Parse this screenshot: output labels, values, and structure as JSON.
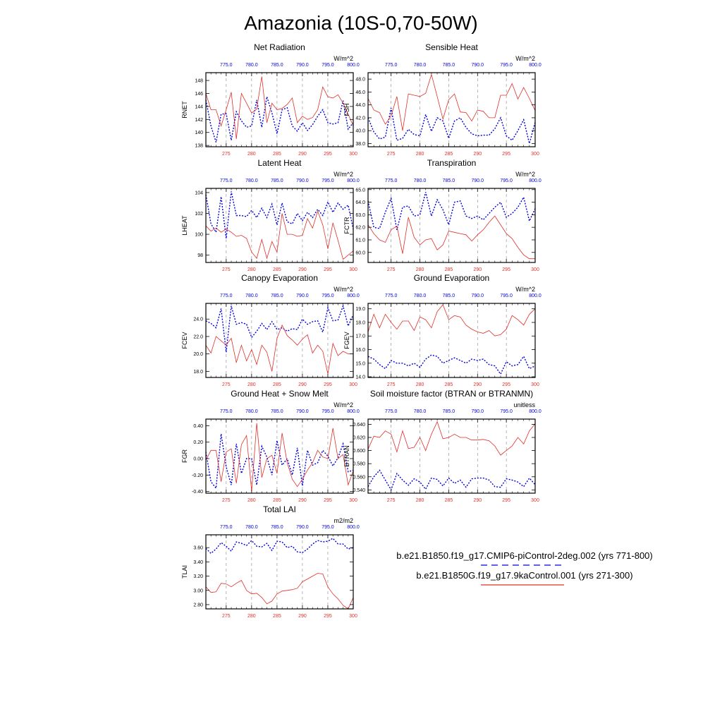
{
  "title": "Amazonia (10S-0,70-50W)",
  "colors": {
    "series1": "#0000dd",
    "series2": "#e0302a",
    "axis": "#000000",
    "grid": "#888888"
  },
  "top_axis": {
    "ticks": [
      "775.0",
      "780.0",
      "785.0",
      "790.0",
      "795.0",
      "800.0"
    ]
  },
  "bottom_axis": {
    "ticks": [
      "275",
      "280",
      "285",
      "290",
      "295",
      "300"
    ]
  },
  "legend": [
    {
      "label": "b.e21.B1850.f19_g17.CMIP6-piControl-2deg.002 (yrs 771-800)",
      "style": "dashed",
      "color": "#0000dd"
    },
    {
      "label": "b.e21.B1850G.f19_g17.9kaControl.001 (yrs 271-300)",
      "style": "solid",
      "color": "#e0302a"
    }
  ],
  "chart_data": [
    {
      "type": "line",
      "title": "Net Radiation",
      "ylabel": "RNET",
      "units": "W/m^2",
      "x": [
        271,
        272,
        273,
        274,
        275,
        276,
        277,
        278,
        279,
        280,
        281,
        282,
        283,
        284,
        285,
        286,
        287,
        288,
        289,
        290,
        291,
        292,
        293,
        294,
        295,
        296,
        297,
        298,
        299,
        300
      ],
      "ylim": [
        137.8,
        149.2
      ],
      "yticks": [
        138,
        140,
        142,
        144,
        146,
        148
      ],
      "ytick_labels": [
        "138",
        "140",
        "142",
        "144",
        "146",
        "148"
      ],
      "series": [
        {
          "values": [
            145.0,
            141.0,
            138.5,
            142.8,
            142.9,
            138.8,
            143.2,
            141.8,
            140.8,
            141.0,
            145.0,
            140.8,
            145.5,
            143.0,
            139.8,
            143.5,
            143.8,
            141.0,
            140.2,
            141.5,
            140.3,
            141.2,
            142.5,
            143.5,
            141.5,
            141.3,
            141.5,
            144.9,
            140.5,
            141.5
          ]
        },
        {
          "values": [
            146.0,
            143.5,
            143.5,
            141.0,
            143.5,
            146.2,
            139.0,
            146.0,
            144.5,
            143.0,
            143.6,
            148.6,
            141.5,
            144.5,
            143.5,
            143.7,
            144.3,
            145.3,
            141.5,
            142.5,
            142.0,
            142.3,
            143.5,
            147.0,
            145.5,
            145.3,
            145.8,
            144.5,
            142.8,
            141.0
          ]
        }
      ]
    },
    {
      "type": "line",
      "title": "Sensible Heat",
      "ylabel": "FSH",
      "units": "W/m^2",
      "x": [
        271,
        272,
        273,
        274,
        275,
        276,
        277,
        278,
        279,
        280,
        281,
        282,
        283,
        284,
        285,
        286,
        287,
        288,
        289,
        290,
        291,
        292,
        293,
        294,
        295,
        296,
        297,
        298,
        299,
        300
      ],
      "ylim": [
        37.5,
        49.0
      ],
      "yticks": [
        38,
        40,
        42,
        44,
        46,
        48
      ],
      "ytick_labels": [
        "38.0",
        "40.0",
        "42.0",
        "44.0",
        "46.0",
        "48.0"
      ],
      "series": [
        {
          "values": [
            42.0,
            39.8,
            38.7,
            39.0,
            43.5,
            38.5,
            38.8,
            40.2,
            39.4,
            39.2,
            42.5,
            39.9,
            42.0,
            41.5,
            38.8,
            41.5,
            42.0,
            40.5,
            39.5,
            39.2,
            39.3,
            39.3,
            40.3,
            42.0,
            39.2,
            38.5,
            40.0,
            41.7,
            38.0,
            41.3
          ]
        },
        {
          "values": [
            45.0,
            43.2,
            42.8,
            41.0,
            42.3,
            45.3,
            40.0,
            45.7,
            45.5,
            45.3,
            45.8,
            48.7,
            45.3,
            41.8,
            44.8,
            45.7,
            42.9,
            42.8,
            41.5,
            43.2,
            43.0,
            42.0,
            42.0,
            45.5,
            45.5,
            47.3,
            44.9,
            46.7,
            45.0,
            43.1
          ]
        }
      ]
    },
    {
      "type": "line",
      "title": "Latent Heat",
      "ylabel": "LHEAT",
      "units": "W/m^2",
      "x": [
        271,
        272,
        273,
        274,
        275,
        276,
        277,
        278,
        279,
        280,
        281,
        282,
        283,
        284,
        285,
        286,
        287,
        288,
        289,
        290,
        291,
        292,
        293,
        294,
        295,
        296,
        297,
        298,
        299,
        300
      ],
      "ylim": [
        97.3,
        104.4
      ],
      "yticks": [
        98,
        100,
        102,
        104
      ],
      "ytick_labels": [
        "98",
        "100",
        "102",
        "104"
      ],
      "series": [
        {
          "values": [
            103.8,
            101.0,
            100.2,
            103.6,
            99.6,
            104.1,
            101.8,
            101.8,
            101.7,
            102.3,
            101.6,
            102.5,
            101.6,
            102.9,
            100.9,
            103.0,
            101.2,
            101.0,
            102.0,
            101.3,
            102.1,
            101.6,
            102.4,
            101.8,
            103.1,
            102.1,
            103.0,
            102.4,
            102.8,
            100.5
          ]
        },
        {
          "values": [
            100.8,
            100.3,
            100.6,
            100.2,
            100.5,
            100.2,
            99.8,
            99.9,
            99.6,
            98.3,
            97.7,
            99.5,
            97.7,
            99.3,
            98.3,
            102.0,
            100.0,
            100.0,
            99.8,
            99.9,
            101.5,
            100.6,
            102.2,
            100.9,
            98.6,
            101.1,
            99.4,
            97.6,
            98.0,
            98.4
          ]
        }
      ]
    },
    {
      "type": "line",
      "title": "Transpiration",
      "ylabel": "FCTR",
      "units": "W/m^2",
      "x": [
        271,
        272,
        273,
        274,
        275,
        276,
        277,
        278,
        279,
        280,
        281,
        282,
        283,
        284,
        285,
        286,
        287,
        288,
        289,
        290,
        291,
        292,
        293,
        294,
        295,
        296,
        297,
        298,
        299,
        300
      ],
      "ylim": [
        59.2,
        65.1
      ],
      "yticks": [
        60,
        61,
        62,
        63,
        64,
        65
      ],
      "ytick_labels": [
        "60.0",
        "61.0",
        "62.0",
        "63.0",
        "64.0",
        "65.0"
      ],
      "series": [
        {
          "values": [
            64.1,
            62.0,
            61.9,
            63.2,
            64.3,
            61.8,
            63.6,
            63.7,
            62.9,
            63.0,
            64.8,
            62.9,
            64.2,
            63.4,
            62.2,
            64.0,
            64.1,
            62.9,
            62.7,
            62.9,
            62.6,
            63.1,
            63.6,
            64.0,
            62.8,
            63.1,
            63.6,
            64.4,
            62.5,
            63.5
          ]
        },
        {
          "values": [
            62.2,
            61.5,
            61.0,
            60.8,
            61.8,
            62.1,
            59.9,
            62.8,
            61.2,
            60.6,
            61.0,
            61.1,
            60.2,
            60.6,
            61.7,
            61.6,
            61.5,
            61.4,
            60.9,
            61.4,
            61.8,
            62.4,
            62.9,
            62.2,
            61.5,
            61.1,
            60.4,
            59.8,
            59.5,
            59.5
          ]
        }
      ]
    },
    {
      "type": "line",
      "title": "Canopy Evaporation",
      "ylabel": "FCEV",
      "units": "W/m^2",
      "x": [
        271,
        272,
        273,
        274,
        275,
        276,
        277,
        278,
        279,
        280,
        281,
        282,
        283,
        284,
        285,
        286,
        287,
        288,
        289,
        290,
        291,
        292,
        293,
        294,
        295,
        296,
        297,
        298,
        299,
        300
      ],
      "ylim": [
        17.3,
        25.8
      ],
      "yticks": [
        18,
        20,
        22,
        24
      ],
      "ytick_labels": [
        "18.0",
        "20.0",
        "22.0",
        "24.0"
      ],
      "series": [
        {
          "values": [
            23.8,
            23.5,
            23.0,
            25.2,
            20.2,
            25.5,
            23.4,
            23.6,
            23.4,
            21.9,
            22.6,
            23.5,
            22.8,
            23.7,
            22.8,
            23.0,
            22.6,
            22.9,
            22.8,
            24.0,
            23.4,
            23.7,
            23.8,
            22.5,
            25.3,
            23.8,
            23.9,
            25.5,
            23.2,
            24.5
          ]
        },
        {
          "values": [
            21.0,
            20.1,
            22.0,
            21.5,
            21.0,
            21.8,
            19.0,
            21.0,
            19.2,
            20.5,
            18.8,
            21.0,
            20.2,
            18.0,
            21.8,
            23.3,
            22.1,
            21.6,
            21.0,
            21.7,
            22.2,
            20.1,
            21.0,
            20.3,
            17.7,
            21.2,
            19.8,
            20.3,
            20.0,
            20.0
          ]
        }
      ]
    },
    {
      "type": "line",
      "title": "Ground Evaporation",
      "ylabel": "FGEV",
      "units": "W/m^2",
      "x": [
        271,
        272,
        273,
        274,
        275,
        276,
        277,
        278,
        279,
        280,
        281,
        282,
        283,
        284,
        285,
        286,
        287,
        288,
        289,
        290,
        291,
        292,
        293,
        294,
        295,
        296,
        297,
        298,
        299,
        300
      ],
      "ylim": [
        13.95,
        19.4
      ],
      "yticks": [
        14,
        15,
        16,
        17,
        18,
        19
      ],
      "ytick_labels": [
        "14.0",
        "15.0",
        "16.0",
        "17.0",
        "18.0",
        "19.0"
      ],
      "series": [
        {
          "values": [
            15.5,
            15.3,
            14.9,
            14.6,
            15.2,
            15.0,
            15.0,
            14.8,
            15.0,
            14.7,
            15.3,
            15.6,
            15.5,
            15.0,
            15.2,
            15.4,
            15.2,
            15.0,
            15.3,
            15.2,
            15.3,
            14.9,
            14.8,
            14.2,
            15.1,
            14.8,
            14.9,
            15.5,
            14.6,
            14.8
          ]
        },
        {
          "values": [
            17.3,
            18.6,
            17.6,
            18.6,
            18.0,
            17.5,
            18.1,
            18.1,
            17.4,
            18.4,
            18.2,
            17.6,
            18.8,
            19.3,
            18.2,
            18.5,
            18.4,
            17.8,
            17.5,
            17.3,
            17.2,
            17.4,
            17.0,
            17.1,
            17.5,
            18.5,
            18.2,
            17.8,
            18.6,
            19.0
          ]
        }
      ]
    },
    {
      "type": "line",
      "title": "Ground Heat + Snow Melt",
      "ylabel": "FGR",
      "units": "W/m^2",
      "x": [
        271,
        272,
        273,
        274,
        275,
        276,
        277,
        278,
        279,
        280,
        281,
        282,
        283,
        284,
        285,
        286,
        287,
        288,
        289,
        290,
        291,
        292,
        293,
        294,
        295,
        296,
        297,
        298,
        299,
        300
      ],
      "ylim": [
        -0.42,
        0.48
      ],
      "yticks": [
        -0.4,
        -0.2,
        0.0,
        0.2,
        0.4
      ],
      "ytick_labels": [
        "-0.40",
        "-0.20",
        "0.00",
        "0.20",
        "0.40"
      ],
      "series": [
        {
          "values": [
            0.08,
            -0.28,
            -0.36,
            0.3,
            -0.1,
            -0.32,
            0.18,
            -0.18,
            0.0,
            0.0,
            -0.32,
            0.15,
            0.02,
            -0.2,
            0.22,
            -0.08,
            0.0,
            -0.2,
            0.13,
            -0.33,
            0.1,
            -0.08,
            -0.05,
            0.1,
            0.03,
            -0.09,
            0.01,
            0.18,
            -0.16,
            -0.14
          ]
        },
        {
          "values": [
            -0.02,
            0.1,
            0.1,
            -0.28,
            0.08,
            0.12,
            -0.3,
            0.17,
            0.28,
            -0.4,
            0.43,
            -0.23,
            0.0,
            0.04,
            -0.18,
            0.31,
            -0.05,
            -0.25,
            -0.34,
            -0.25,
            -0.14,
            -0.05,
            0.1,
            0.02,
            0.0,
            0.37,
            0.0,
            0.05,
            -0.32,
            -0.15
          ]
        }
      ]
    },
    {
      "type": "line",
      "title": "Soil moisture factor (BTRAN or BTRANMN)",
      "ylabel": "BTRAN",
      "units": "unitless",
      "x": [
        271,
        272,
        273,
        274,
        275,
        276,
        277,
        278,
        279,
        280,
        281,
        282,
        283,
        284,
        285,
        286,
        287,
        288,
        289,
        290,
        291,
        292,
        293,
        294,
        295,
        296,
        297,
        298,
        299,
        300
      ],
      "ylim": [
        0.535,
        0.648
      ],
      "yticks": [
        0.54,
        0.56,
        0.58,
        0.6,
        0.62,
        0.64
      ],
      "ytick_labels": [
        "0.540",
        "0.560",
        "0.580",
        "0.600",
        "0.620",
        "0.640"
      ],
      "series": [
        {
          "values": [
            0.545,
            0.56,
            0.57,
            0.555,
            0.54,
            0.565,
            0.555,
            0.547,
            0.557,
            0.552,
            0.541,
            0.558,
            0.556,
            0.546,
            0.558,
            0.55,
            0.555,
            0.544,
            0.557,
            0.558,
            0.558,
            0.555,
            0.545,
            0.544,
            0.557,
            0.555,
            0.552,
            0.545,
            0.558,
            0.548
          ]
        },
        {
          "values": [
            0.602,
            0.622,
            0.62,
            0.63,
            0.625,
            0.598,
            0.63,
            0.603,
            0.605,
            0.62,
            0.6,
            0.625,
            0.644,
            0.618,
            0.62,
            0.625,
            0.62,
            0.62,
            0.616,
            0.616,
            0.617,
            0.615,
            0.607,
            0.593,
            0.6,
            0.607,
            0.62,
            0.61,
            0.63,
            0.641
          ]
        }
      ]
    },
    {
      "type": "line",
      "title": "Total LAI",
      "ylabel": "TLAI",
      "units": "m2/m2",
      "x": [
        271,
        272,
        273,
        274,
        275,
        276,
        277,
        278,
        279,
        280,
        281,
        282,
        283,
        284,
        285,
        286,
        287,
        288,
        289,
        290,
        291,
        292,
        293,
        294,
        295,
        296,
        297,
        298,
        299,
        300
      ],
      "ylim": [
        2.74,
        3.78
      ],
      "yticks": [
        2.8,
        3.0,
        3.2,
        3.4,
        3.6
      ],
      "ytick_labels": [
        "2.80",
        "3.00",
        "3.20",
        "3.40",
        "3.60"
      ],
      "series": [
        {
          "values": [
            3.59,
            3.52,
            3.58,
            3.67,
            3.62,
            3.55,
            3.68,
            3.66,
            3.63,
            3.7,
            3.62,
            3.61,
            3.66,
            3.56,
            3.69,
            3.68,
            3.6,
            3.62,
            3.54,
            3.53,
            3.58,
            3.65,
            3.7,
            3.68,
            3.69,
            3.73,
            3.65,
            3.65,
            3.58,
            3.6
          ]
        },
        {
          "values": [
            3.05,
            2.97,
            2.98,
            3.1,
            3.09,
            3.05,
            3.1,
            3.14,
            3.0,
            2.95,
            2.96,
            2.9,
            2.81,
            2.85,
            2.95,
            2.99,
            3.0,
            3.01,
            3.03,
            3.12,
            3.16,
            3.2,
            3.24,
            3.23,
            3.05,
            2.95,
            2.88,
            2.79,
            2.74,
            2.9
          ]
        }
      ]
    }
  ]
}
